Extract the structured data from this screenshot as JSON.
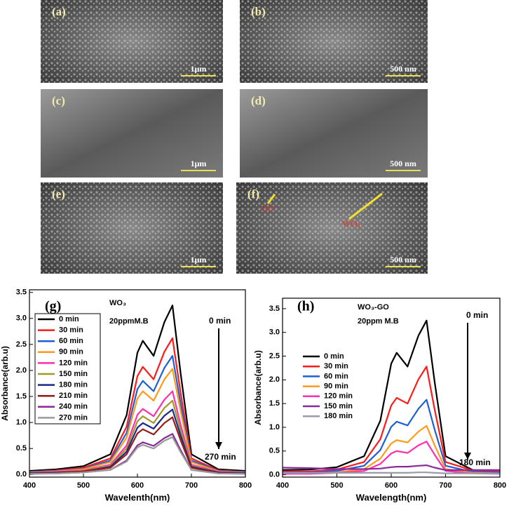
{
  "panels": [
    {
      "label": "(a)",
      "scale": "1μm"
    },
    {
      "label": "(b)",
      "scale": "500 nm"
    },
    {
      "label": "(c)",
      "scale": "1μm"
    },
    {
      "label": "(d)",
      "scale": "500 nm"
    },
    {
      "label": "(e)",
      "scale": "1μm"
    },
    {
      "label": "(f)",
      "scale": "500 nm",
      "annotations": [
        "GO",
        "WO₃"
      ]
    }
  ],
  "chart_data": [
    {
      "type": "line",
      "annotations": [
        "(g)",
        "WO₃",
        "20ppmM.B",
        "0 min",
        "270 min"
      ],
      "xlabel": "Wavelenth(nm)",
      "ylabel": "Absorbance(arb.u)",
      "x": [
        400,
        450,
        500,
        550,
        580,
        600,
        610,
        630,
        650,
        665,
        680,
        700,
        750,
        800
      ],
      "xlim": [
        400,
        800
      ],
      "xticks": [
        400,
        500,
        600,
        700,
        800
      ],
      "ylim": [
        -0.05,
        3.55
      ],
      "yticks": [
        {
          "value": 0,
          "label": "0.0"
        },
        0.5,
        {
          "value": 1,
          "label": "1.0"
        },
        1.5,
        {
          "value": 2,
          "label": "2.0"
        },
        2.5,
        {
          "value": 3,
          "label": "3.0"
        },
        3.5
      ],
      "legend": "upper left",
      "legend_box": true,
      "series": [
        {
          "name": "0 min",
          "color": "#000000",
          "values": [
            0.07,
            0.1,
            0.16,
            0.39,
            1.14,
            2.34,
            2.57,
            2.28,
            2.93,
            3.25,
            1.95,
            0.39,
            0.1,
            0.07
          ]
        },
        {
          "name": "30 min",
          "color": "#ff1a1a",
          "values": [
            0.05,
            0.08,
            0.13,
            0.31,
            0.92,
            1.89,
            2.07,
            1.83,
            2.36,
            2.62,
            1.57,
            0.31,
            0.08,
            0.05
          ]
        },
        {
          "name": "60 min",
          "color": "#1f5fd6",
          "values": [
            0.05,
            0.07,
            0.11,
            0.27,
            0.8,
            1.64,
            1.8,
            1.6,
            2.05,
            2.28,
            1.37,
            0.27,
            0.07,
            0.05
          ]
        },
        {
          "name": "90 min",
          "color": "#ff9a1a",
          "values": [
            0.04,
            0.06,
            0.1,
            0.24,
            0.71,
            1.46,
            1.6,
            1.42,
            1.83,
            2.03,
            1.22,
            0.24,
            0.06,
            0.04
          ]
        },
        {
          "name": "120 min",
          "color": "#ff2fb0",
          "values": [
            0.03,
            0.05,
            0.08,
            0.19,
            0.56,
            1.15,
            1.26,
            1.12,
            1.44,
            1.6,
            0.96,
            0.19,
            0.05,
            0.03
          ]
        },
        {
          "name": "150 min",
          "color": "#a09a2a",
          "values": [
            0.03,
            0.04,
            0.07,
            0.17,
            0.5,
            1.02,
            1.12,
            0.99,
            1.28,
            1.42,
            0.85,
            0.17,
            0.04,
            0.03
          ]
        },
        {
          "name": "180 min",
          "color": "#1a2a8a",
          "values": [
            0.03,
            0.04,
            0.06,
            0.15,
            0.44,
            0.9,
            0.99,
            0.88,
            1.13,
            1.25,
            0.75,
            0.15,
            0.04,
            0.03
          ]
        },
        {
          "name": "210 min",
          "color": "#9a1a1a",
          "values": [
            0.02,
            0.03,
            0.06,
            0.13,
            0.39,
            0.79,
            0.87,
            0.77,
            0.99,
            1.1,
            0.66,
            0.13,
            0.03,
            0.02
          ]
        },
        {
          "name": "240 min",
          "color": "#8a2a9a",
          "values": [
            0.02,
            0.02,
            0.04,
            0.09,
            0.27,
            0.56,
            0.62,
            0.55,
            0.7,
            0.78,
            0.47,
            0.09,
            0.02,
            0.02
          ]
        },
        {
          "name": "270 min",
          "color": "#9a9a9a",
          "values": [
            0.01,
            0.02,
            0.04,
            0.09,
            0.25,
            0.52,
            0.57,
            0.5,
            0.65,
            0.72,
            0.43,
            0.09,
            0.02,
            0.01
          ]
        }
      ]
    },
    {
      "type": "line",
      "annotations": [
        "(h)",
        "WO₃-GO",
        "20ppm M.B",
        "0 min",
        "180 min"
      ],
      "xlabel": "Wavelength(nm)",
      "ylabel": "Absorbance(arb.u)",
      "x": [
        400,
        450,
        500,
        550,
        580,
        600,
        610,
        630,
        650,
        665,
        680,
        700,
        750,
        800
      ],
      "xlim": [
        400,
        800
      ],
      "xticks": [
        400,
        500,
        600,
        700,
        800
      ],
      "ylim": [
        -0.05,
        3.72
      ],
      "yticks": [
        {
          "value": 0,
          "label": "0.0"
        },
        0.5,
        {
          "value": 1,
          "label": "1.0"
        },
        1.5,
        {
          "value": 2,
          "label": "2.0"
        },
        2.5,
        {
          "value": 3,
          "label": "3.0"
        },
        3.5
      ],
      "legend": "center left",
      "legend_box": false,
      "series": [
        {
          "name": "0 min",
          "color": "#000000",
          "values": [
            0.1,
            0.11,
            0.16,
            0.39,
            1.14,
            2.34,
            2.57,
            2.28,
            2.93,
            3.25,
            1.95,
            0.39,
            0.1,
            0.07
          ]
        },
        {
          "name": "30 min",
          "color": "#ff1a1a",
          "values": [
            0.07,
            0.07,
            0.11,
            0.27,
            0.75,
            1.46,
            1.62,
            1.5,
            2.01,
            2.28,
            1.37,
            0.27,
            0.09,
            0.07
          ]
        },
        {
          "name": "60 min",
          "color": "#1f5fd6",
          "values": [
            0.05,
            0.05,
            0.08,
            0.19,
            0.52,
            1.01,
            1.12,
            1.04,
            1.39,
            1.58,
            0.95,
            0.19,
            0.06,
            0.05
          ]
        },
        {
          "name": "90 min",
          "color": "#ff9a1a",
          "values": [
            0.03,
            0.03,
            0.05,
            0.12,
            0.34,
            0.66,
            0.73,
            0.68,
            0.91,
            1.03,
            0.62,
            0.12,
            0.04,
            0.03
          ]
        },
        {
          "name": "120 min",
          "color": "#ff2fb0",
          "values": [
            0.02,
            0.02,
            0.04,
            0.08,
            0.23,
            0.45,
            0.5,
            0.46,
            0.62,
            0.7,
            0.42,
            0.08,
            0.03,
            0.02
          ]
        },
        {
          "name": "150 min",
          "color": "#8a2a9a",
          "values": [
            0.15,
            0.14,
            0.12,
            0.12,
            0.13,
            0.16,
            0.17,
            0.17,
            0.19,
            0.2,
            0.15,
            0.1,
            0.1,
            0.1
          ]
        },
        {
          "name": "180 min",
          "color": "#9a9aaa",
          "values": [
            0.04,
            0.04,
            0.04,
            0.04,
            0.04,
            0.04,
            0.04,
            0.04,
            0.05,
            0.05,
            0.04,
            0.03,
            0.03,
            0.03
          ]
        }
      ]
    }
  ]
}
